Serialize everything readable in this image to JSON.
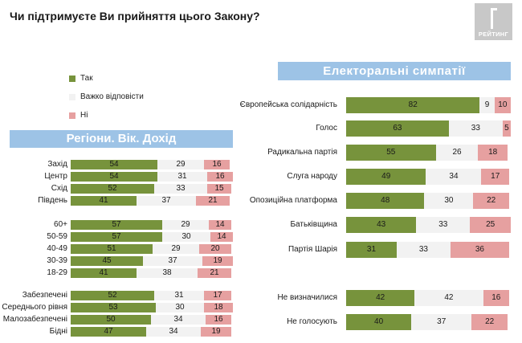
{
  "title": "Чи підтримуєте Ви прийняття цього Закону?",
  "logo": {
    "text": "РЕЙТИНГ"
  },
  "colors": {
    "yes": "#77933c",
    "hard": "#f2f2f2",
    "no": "#e6a0a0",
    "banner": "#9dc3e6"
  },
  "legend": [
    {
      "label": "Так",
      "key": "yes"
    },
    {
      "label": "Важко відповісти",
      "key": "hard"
    },
    {
      "label": "Ні",
      "key": "no"
    }
  ],
  "chart_data": [
    {
      "type": "bar",
      "stacked": true,
      "orientation": "horizontal",
      "title": "Регіони. Вік. Дохід",
      "categories": [
        "Захід",
        "Центр",
        "Схід",
        "Південь",
        "60+",
        "50-59",
        "40-49",
        "30-39",
        "18-29",
        "Забезпечені",
        "Середнього рівня",
        "Малозабезпечені",
        "Бідні"
      ],
      "series": [
        {
          "name": "Так",
          "values": [
            54,
            54,
            52,
            41,
            57,
            57,
            51,
            45,
            41,
            52,
            53,
            50,
            47
          ]
        },
        {
          "name": "Важко відповісти",
          "values": [
            29,
            31,
            33,
            37,
            29,
            30,
            29,
            37,
            38,
            31,
            30,
            34,
            34
          ]
        },
        {
          "name": "Ні",
          "values": [
            16,
            16,
            15,
            21,
            14,
            14,
            20,
            19,
            21,
            17,
            18,
            16,
            19
          ]
        }
      ],
      "xlim": [
        0,
        100
      ]
    },
    {
      "type": "bar",
      "stacked": true,
      "orientation": "horizontal",
      "title": "Електоральні симпатії",
      "categories": [
        "Європейська солідарність",
        "Голос",
        "Радикальна партія",
        "Слуга народу",
        "Опозиційна платформа",
        "Батьківщина",
        "Партія Шарія",
        "Не визначилися",
        "Не голосують"
      ],
      "series": [
        {
          "name": "Так",
          "values": [
            82,
            63,
            55,
            49,
            48,
            43,
            31,
            42,
            40
          ]
        },
        {
          "name": "Важко відповісти",
          "values": [
            9,
            33,
            26,
            34,
            30,
            33,
            33,
            42,
            37
          ]
        },
        {
          "name": "Ні",
          "values": [
            10,
            5,
            18,
            17,
            22,
            25,
            36,
            16,
            22
          ]
        }
      ],
      "xlim": [
        0,
        100
      ]
    }
  ]
}
